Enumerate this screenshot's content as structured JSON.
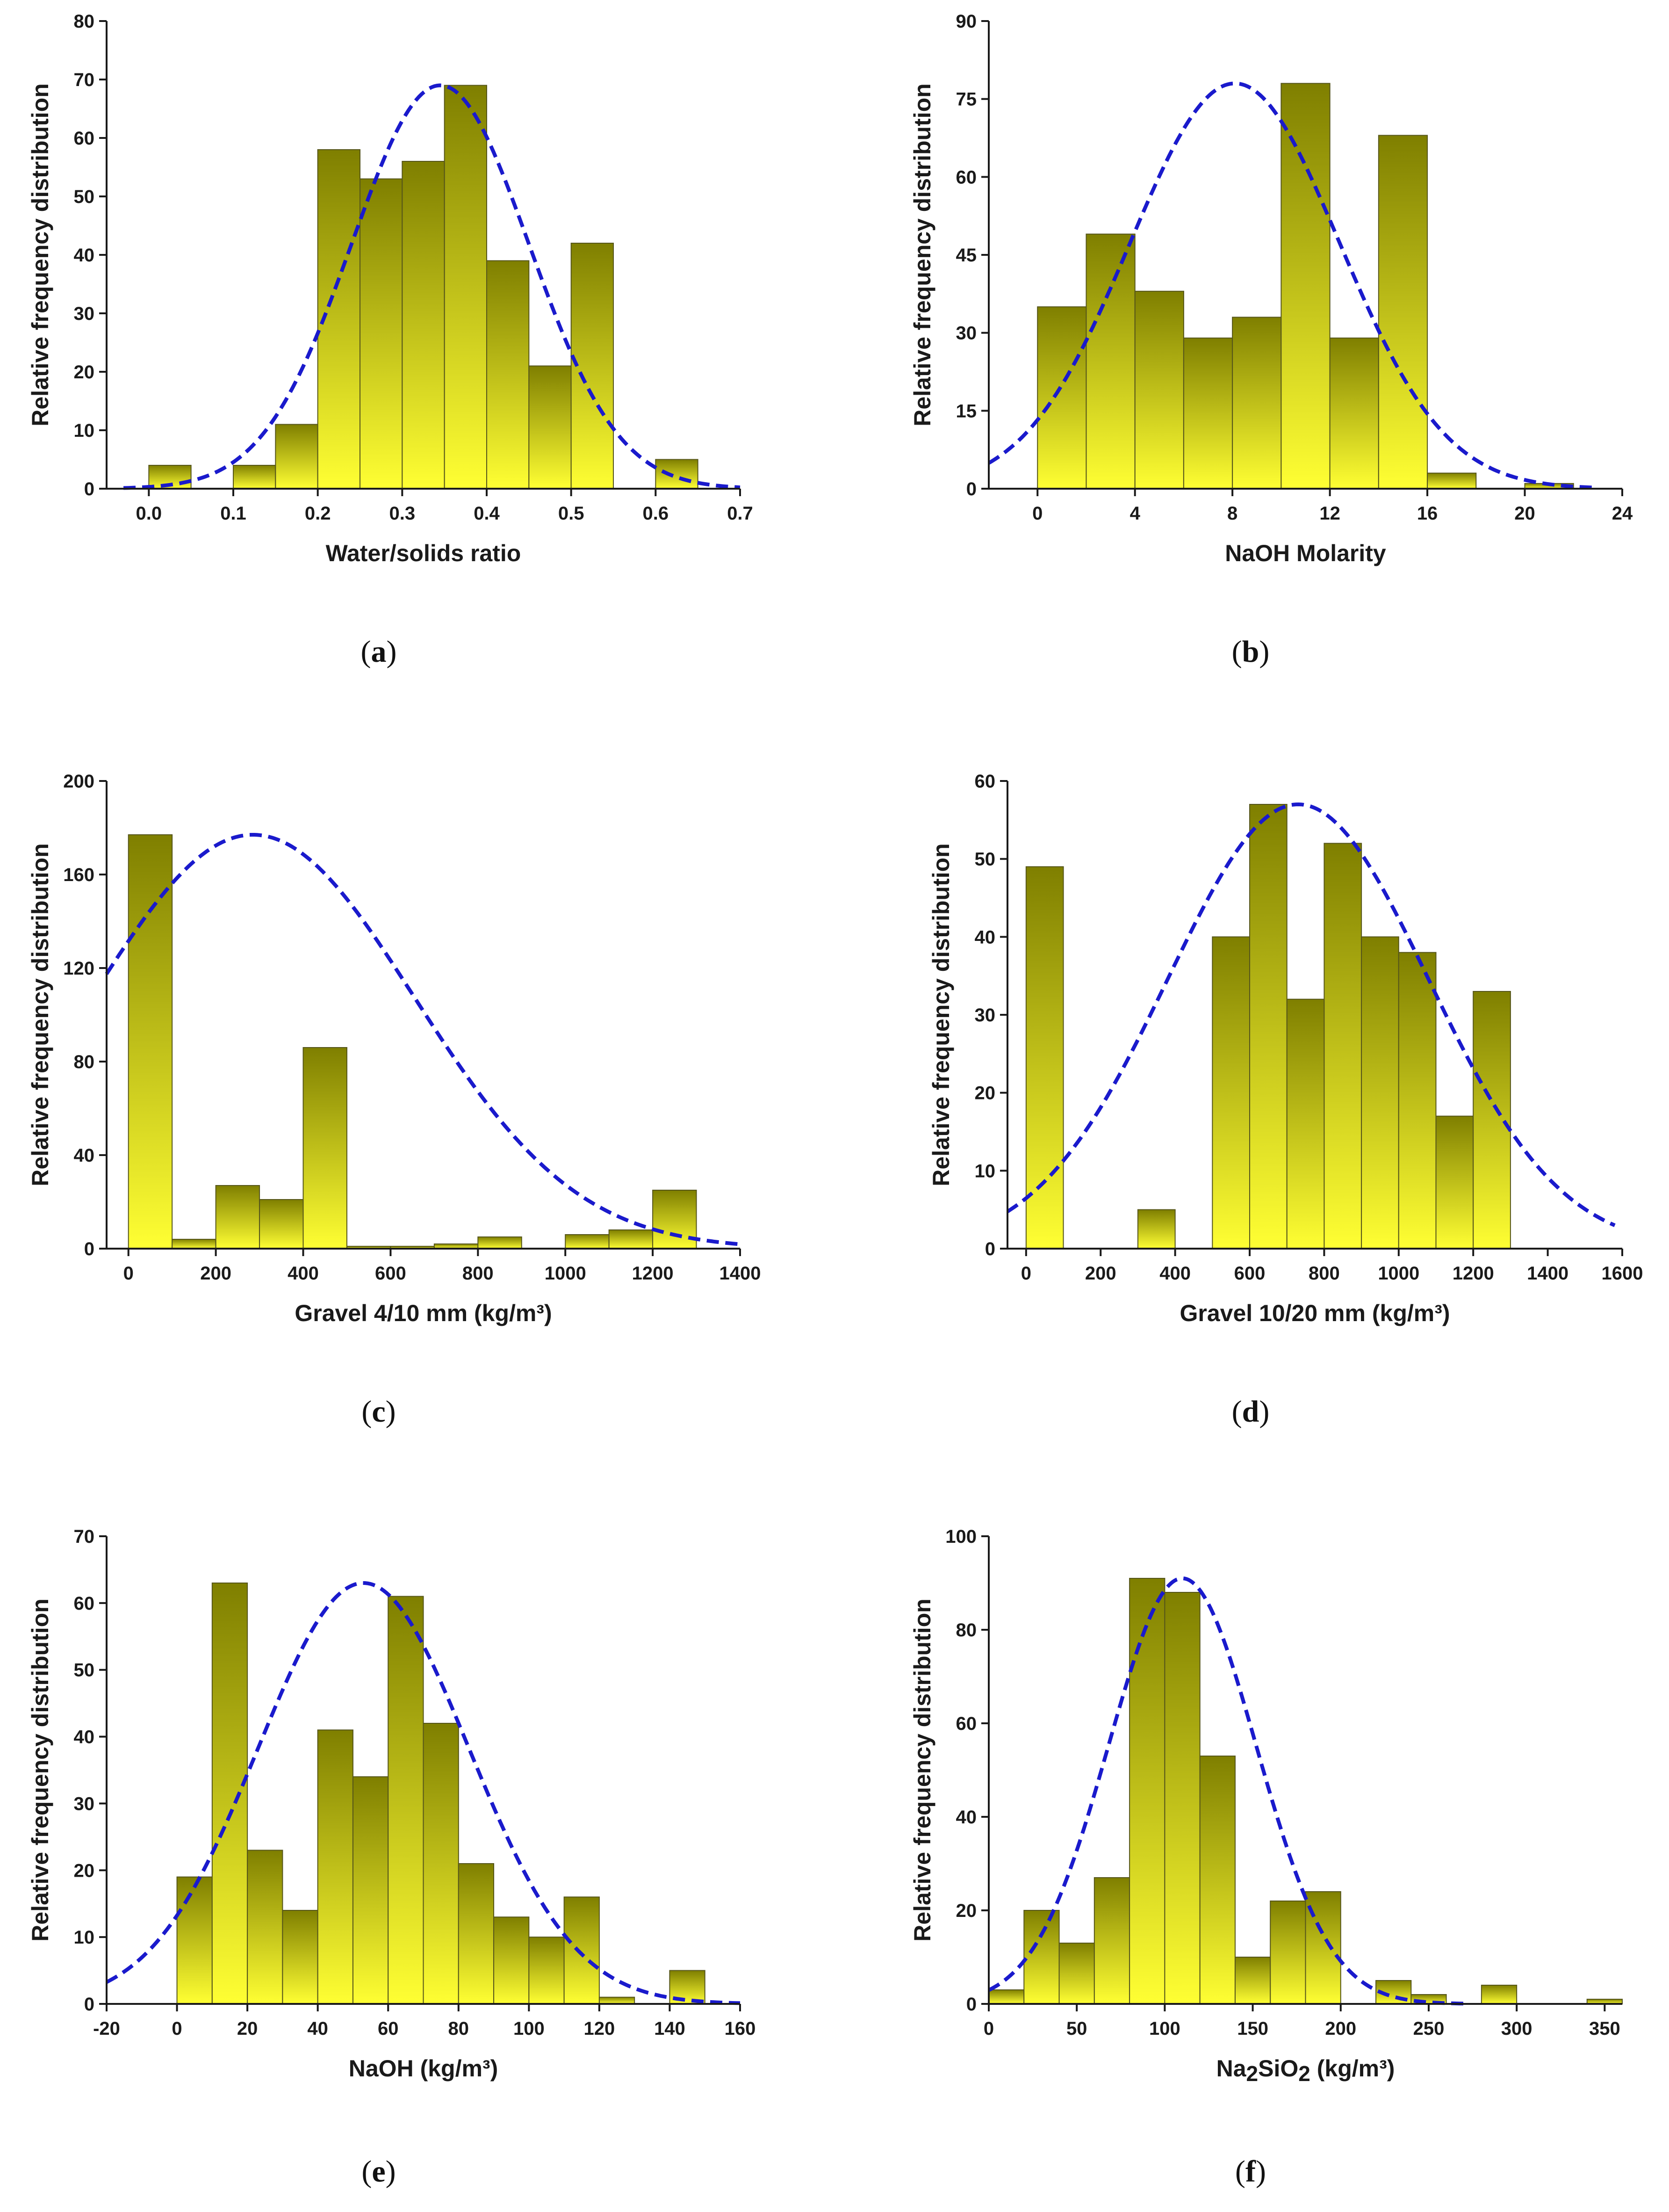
{
  "style": {
    "bar_fill_top": "#7f7f00",
    "bar_fill_bottom": "#ffff33",
    "bar_stroke": "#55551a",
    "curve_color": "#1a1acc",
    "axis_color": "#1a1a1a"
  },
  "chart_data": [
    {
      "type": "bar",
      "panel_label": "(a)",
      "panel_letter": "a",
      "xlabel": "Water/solids ratio",
      "ylabel": "Relative frequency distribution",
      "xlim": [
        -0.05,
        0.7
      ],
      "ylim": [
        0,
        80
      ],
      "xticks": [
        0.0,
        0.1,
        0.2,
        0.3,
        0.4,
        0.5,
        0.6,
        0.7
      ],
      "xtick_labels": [
        "0.0",
        "0.1",
        "0.2",
        "0.3",
        "0.4",
        "0.5",
        "0.6",
        "0.7"
      ],
      "yticks": [
        0,
        10,
        20,
        30,
        40,
        50,
        60,
        70,
        80
      ],
      "ytick_labels": [
        "0",
        "10",
        "20",
        "30",
        "40",
        "50",
        "60",
        "70",
        "80"
      ],
      "bin_width": 0.05,
      "bins": [
        {
          "start": 0.0,
          "value": 4
        },
        {
          "start": 0.05,
          "value": 0
        },
        {
          "start": 0.1,
          "value": 4
        },
        {
          "start": 0.15,
          "value": 11
        },
        {
          "start": 0.2,
          "value": 58
        },
        {
          "start": 0.25,
          "value": 53
        },
        {
          "start": 0.3,
          "value": 56
        },
        {
          "start": 0.35,
          "value": 69
        },
        {
          "start": 0.4,
          "value": 39
        },
        {
          "start": 0.45,
          "value": 21
        },
        {
          "start": 0.5,
          "value": 42
        },
        {
          "start": 0.55,
          "value": 0
        },
        {
          "start": 0.6,
          "value": 5
        }
      ],
      "normal_curve": {
        "mean": 0.345,
        "sd": 0.105,
        "peak": 69,
        "x_range": [
          -0.03,
          0.7
        ]
      },
      "grid": false
    },
    {
      "type": "bar",
      "panel_label": "(b)",
      "panel_letter": "b",
      "xlabel": "NaOH Molarity",
      "ylabel": "Relative frequency distribution",
      "xlim": [
        -2,
        24
      ],
      "ylim": [
        0,
        90
      ],
      "xticks": [
        0,
        4,
        8,
        12,
        16,
        20,
        24
      ],
      "xtick_labels": [
        "0",
        "4",
        "8",
        "12",
        "16",
        "20",
        "24"
      ],
      "yticks": [
        0,
        15,
        30,
        45,
        60,
        75,
        90
      ],
      "ytick_labels": [
        "0",
        "15",
        "30",
        "45",
        "60",
        "75",
        "90"
      ],
      "bin_width": 2,
      "bins": [
        {
          "start": 0,
          "value": 35
        },
        {
          "start": 2,
          "value": 49
        },
        {
          "start": 4,
          "value": 38
        },
        {
          "start": 6,
          "value": 29
        },
        {
          "start": 8,
          "value": 33
        },
        {
          "start": 10,
          "value": 78
        },
        {
          "start": 12,
          "value": 29
        },
        {
          "start": 14,
          "value": 68
        },
        {
          "start": 16,
          "value": 3
        },
        {
          "start": 18,
          "value": 0
        },
        {
          "start": 20,
          "value": 1
        }
      ],
      "normal_curve": {
        "mean": 8.1,
        "sd": 4.3,
        "peak": 78,
        "x_range": [
          -2,
          23
        ]
      },
      "grid": false
    },
    {
      "type": "bar",
      "panel_label": "(c)",
      "panel_letter": "c",
      "xlabel": "Gravel 4/10 mm (kg/m³)",
      "ylabel": "Relative frequency distribution",
      "xlim": [
        -50,
        1400
      ],
      "ylim": [
        0,
        200
      ],
      "xticks": [
        0,
        200,
        400,
        600,
        800,
        1000,
        1200,
        1400
      ],
      "xtick_labels": [
        "0",
        "200",
        "400",
        "600",
        "800",
        "1000",
        "1200",
        "1400"
      ],
      "yticks": [
        0,
        40,
        80,
        120,
        160,
        200
      ],
      "ytick_labels": [
        "0",
        "40",
        "80",
        "120",
        "160",
        "200"
      ],
      "bin_width": 100,
      "bins": [
        {
          "start": 0,
          "value": 177
        },
        {
          "start": 100,
          "value": 4
        },
        {
          "start": 200,
          "value": 27
        },
        {
          "start": 300,
          "value": 21
        },
        {
          "start": 400,
          "value": 86
        },
        {
          "start": 500,
          "value": 1
        },
        {
          "start": 600,
          "value": 1
        },
        {
          "start": 700,
          "value": 2
        },
        {
          "start": 800,
          "value": 5
        },
        {
          "start": 900,
          "value": 0
        },
        {
          "start": 1000,
          "value": 6
        },
        {
          "start": 1100,
          "value": 8
        },
        {
          "start": 1200,
          "value": 25
        }
      ],
      "normal_curve": {
        "mean": 285,
        "sd": 370,
        "peak": 177,
        "x_range": [
          -50,
          1400
        ]
      },
      "grid": false
    },
    {
      "type": "bar",
      "panel_label": "(d)",
      "panel_letter": "d",
      "xlabel": "Gravel 10/20 mm (kg/m³)",
      "ylabel": "Relative frequency distribution",
      "xlim": [
        -50,
        1600
      ],
      "ylim": [
        0,
        60
      ],
      "xticks": [
        0,
        200,
        400,
        600,
        800,
        1000,
        1200,
        1400,
        1600
      ],
      "xtick_labels": [
        "0",
        "200",
        "400",
        "600",
        "800",
        "1000",
        "1200",
        "1400",
        "1600"
      ],
      "yticks": [
        0,
        10,
        20,
        30,
        40,
        50,
        60
      ],
      "ytick_labels": [
        "0",
        "10",
        "20",
        "30",
        "40",
        "50",
        "60"
      ],
      "bin_width": 100,
      "bins": [
        {
          "start": 0,
          "value": 49
        },
        {
          "start": 100,
          "value": 0
        },
        {
          "start": 200,
          "value": 0
        },
        {
          "start": 300,
          "value": 5
        },
        {
          "start": 400,
          "value": 0
        },
        {
          "start": 500,
          "value": 40
        },
        {
          "start": 600,
          "value": 57
        },
        {
          "start": 700,
          "value": 32
        },
        {
          "start": 800,
          "value": 52
        },
        {
          "start": 900,
          "value": 40
        },
        {
          "start": 1000,
          "value": 38
        },
        {
          "start": 1100,
          "value": 17
        },
        {
          "start": 1200,
          "value": 33
        }
      ],
      "normal_curve": {
        "mean": 730,
        "sd": 350,
        "peak": 57,
        "x_range": [
          -50,
          1580
        ]
      },
      "grid": false
    },
    {
      "type": "bar",
      "panel_label": "(e)",
      "panel_letter": "e",
      "xlabel": "NaOH (kg/m³)",
      "ylabel": "Relative frequency distribution",
      "xlim": [
        -20,
        160
      ],
      "ylim": [
        0,
        70
      ],
      "xticks": [
        -20,
        0,
        20,
        40,
        60,
        80,
        100,
        120,
        140,
        160
      ],
      "xtick_labels": [
        "-20",
        "0",
        "20",
        "40",
        "60",
        "80",
        "100",
        "120",
        "140",
        "160"
      ],
      "yticks": [
        0,
        10,
        20,
        30,
        40,
        50,
        60,
        70
      ],
      "ytick_labels": [
        "0",
        "10",
        "20",
        "30",
        "40",
        "50",
        "60",
        "70"
      ],
      "bin_width": 10,
      "bins": [
        {
          "start": 0,
          "value": 19
        },
        {
          "start": 10,
          "value": 63
        },
        {
          "start": 20,
          "value": 23
        },
        {
          "start": 30,
          "value": 14
        },
        {
          "start": 40,
          "value": 41
        },
        {
          "start": 50,
          "value": 34
        },
        {
          "start": 60,
          "value": 61
        },
        {
          "start": 70,
          "value": 42
        },
        {
          "start": 80,
          "value": 21
        },
        {
          "start": 90,
          "value": 13
        },
        {
          "start": 100,
          "value": 10
        },
        {
          "start": 110,
          "value": 16
        },
        {
          "start": 120,
          "value": 1
        },
        {
          "start": 130,
          "value": 0
        },
        {
          "start": 140,
          "value": 5
        }
      ],
      "normal_curve": {
        "mean": 53,
        "sd": 30,
        "peak": 63,
        "x_range": [
          -20,
          160
        ]
      },
      "grid": false
    },
    {
      "type": "bar",
      "panel_label": "(f)",
      "panel_letter": "f",
      "xlabel_parts": [
        {
          "text": "Na",
          "sub": false
        },
        {
          "text": "2",
          "sub": true
        },
        {
          "text": "SiO",
          "sub": false
        },
        {
          "text": "2",
          "sub": true
        },
        {
          "text": " (kg/m³)",
          "sub": false
        }
      ],
      "ylabel": "Relative frequency distribution",
      "xlim": [
        0,
        360
      ],
      "ylim": [
        0,
        100
      ],
      "xticks": [
        0,
        50,
        100,
        150,
        200,
        250,
        300,
        350
      ],
      "xtick_labels": [
        "0",
        "50",
        "100",
        "150",
        "200",
        "250",
        "300",
        "350"
      ],
      "yticks": [
        0,
        20,
        40,
        60,
        80,
        100
      ],
      "ytick_labels": [
        "0",
        "20",
        "40",
        "60",
        "80",
        "100"
      ],
      "bin_width": 20,
      "bins": [
        {
          "start": 0,
          "value": 3
        },
        {
          "start": 20,
          "value": 20
        },
        {
          "start": 40,
          "value": 13
        },
        {
          "start": 60,
          "value": 27
        },
        {
          "start": 80,
          "value": 91
        },
        {
          "start": 100,
          "value": 88
        },
        {
          "start": 120,
          "value": 53
        },
        {
          "start": 140,
          "value": 10
        },
        {
          "start": 160,
          "value": 22
        },
        {
          "start": 180,
          "value": 24
        },
        {
          "start": 200,
          "value": 0
        },
        {
          "start": 220,
          "value": 5
        },
        {
          "start": 240,
          "value": 2
        },
        {
          "start": 260,
          "value": 0
        },
        {
          "start": 280,
          "value": 4
        },
        {
          "start": 300,
          "value": 0
        },
        {
          "start": 320,
          "value": 0
        },
        {
          "start": 340,
          "value": 1
        }
      ],
      "normal_curve": {
        "mean": 110,
        "sd": 42,
        "peak": 91,
        "x_range": [
          0,
          270
        ]
      },
      "grid": false
    }
  ]
}
